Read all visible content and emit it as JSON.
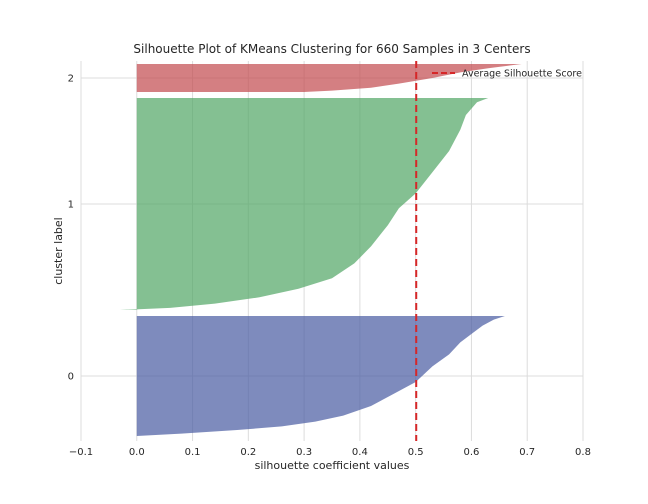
{
  "chart_data": {
    "type": "area",
    "title": "Silhouette Plot of KMeans Clustering for 660 Samples in 3 Centers",
    "xlabel": "silhouette coefficient values",
    "ylabel": "cluster label",
    "xlim": [
      -0.1,
      0.8
    ],
    "xticks": [
      -0.1,
      0.0,
      0.1,
      0.2,
      0.3,
      0.4,
      0.5,
      0.6,
      0.7,
      0.8
    ],
    "xtick_labels": [
      "−0.1",
      "0.0",
      "0.1",
      "0.2",
      "0.3",
      "0.4",
      "0.5",
      "0.6",
      "0.7",
      "0.8"
    ],
    "grid": true,
    "legend": {
      "position": "top-right",
      "entries": [
        "Average Silhouette Score"
      ]
    },
    "average_silhouette_score": 0.501,
    "clusters": [
      {
        "label": "0",
        "color": "#4C5EA3",
        "size": 275,
        "values_descending": [
          {
            "q": 0.0,
            "v": 0.66
          },
          {
            "q": 0.03,
            "v": 0.64
          },
          {
            "q": 0.08,
            "v": 0.62
          },
          {
            "q": 0.15,
            "v": 0.6
          },
          {
            "q": 0.22,
            "v": 0.58
          },
          {
            "q": 0.32,
            "v": 0.56
          },
          {
            "q": 0.42,
            "v": 0.53
          },
          {
            "q": 0.55,
            "v": 0.5
          },
          {
            "q": 0.65,
            "v": 0.46
          },
          {
            "q": 0.75,
            "v": 0.42
          },
          {
            "q": 0.83,
            "v": 0.37
          },
          {
            "q": 0.88,
            "v": 0.32
          },
          {
            "q": 0.92,
            "v": 0.26
          },
          {
            "q": 0.95,
            "v": 0.18
          },
          {
            "q": 0.98,
            "v": 0.08
          },
          {
            "q": 1.0,
            "v": 0.0
          }
        ]
      },
      {
        "label": "1",
        "color": "#55A868",
        "size": 325,
        "values_descending": [
          {
            "q": 0.0,
            "v": 0.63
          },
          {
            "q": 0.02,
            "v": 0.61
          },
          {
            "q": 0.08,
            "v": 0.59
          },
          {
            "q": 0.15,
            "v": 0.58
          },
          {
            "q": 0.25,
            "v": 0.56
          },
          {
            "q": 0.35,
            "v": 0.53
          },
          {
            "q": 0.45,
            "v": 0.5
          },
          {
            "q": 0.52,
            "v": 0.47
          },
          {
            "q": 0.6,
            "v": 0.45
          },
          {
            "q": 0.7,
            "v": 0.42
          },
          {
            "q": 0.78,
            "v": 0.39
          },
          {
            "q": 0.85,
            "v": 0.35
          },
          {
            "q": 0.9,
            "v": 0.29
          },
          {
            "q": 0.94,
            "v": 0.22
          },
          {
            "q": 0.97,
            "v": 0.14
          },
          {
            "q": 0.99,
            "v": 0.06
          },
          {
            "q": 1.0,
            "v": -0.03
          }
        ]
      },
      {
        "label": "2",
        "color": "#C44E52",
        "size": 60,
        "values_descending": [
          {
            "q": 0.0,
            "v": 0.69
          },
          {
            "q": 0.05,
            "v": 0.67
          },
          {
            "q": 0.15,
            "v": 0.63
          },
          {
            "q": 0.3,
            "v": 0.58
          },
          {
            "q": 0.5,
            "v": 0.53
          },
          {
            "q": 0.7,
            "v": 0.47
          },
          {
            "q": 0.85,
            "v": 0.42
          },
          {
            "q": 0.95,
            "v": 0.35
          },
          {
            "q": 1.0,
            "v": 0.3
          }
        ]
      }
    ]
  }
}
